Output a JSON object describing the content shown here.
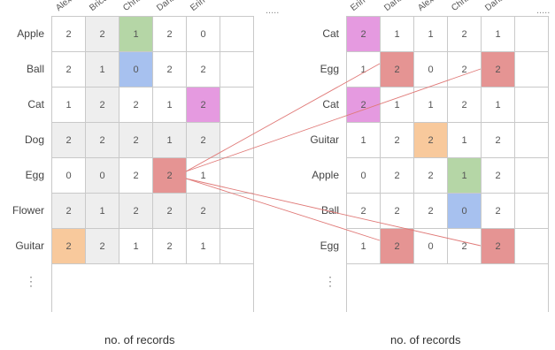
{
  "left_table": {
    "columns": [
      "Alex",
      "Brice",
      "Chris",
      "Dana",
      "Erin"
    ],
    "columns_more": ".....",
    "rows": [
      {
        "label": "Apple",
        "values": [
          "2",
          "2",
          "1",
          "2",
          "0"
        ]
      },
      {
        "label": "Ball",
        "values": [
          "2",
          "1",
          "0",
          "2",
          "2"
        ]
      },
      {
        "label": "Cat",
        "values": [
          "1",
          "2",
          "2",
          "1",
          "2"
        ]
      },
      {
        "label": "Dog",
        "values": [
          "2",
          "2",
          "2",
          "1",
          "2"
        ]
      },
      {
        "label": "Egg",
        "values": [
          "0",
          "0",
          "2",
          "2",
          "1"
        ]
      },
      {
        "label": "Flower",
        "values": [
          "2",
          "1",
          "2",
          "2",
          "2"
        ]
      },
      {
        "label": "Guitar",
        "values": [
          "2",
          "2",
          "1",
          "2",
          "1"
        ]
      }
    ],
    "rows_more": "⋮",
    "caption": "no. of records"
  },
  "right_table": {
    "columns": [
      "Erin",
      "Dana",
      "Alex",
      "Chris",
      "Dana"
    ],
    "columns_more": ".....",
    "rows": [
      {
        "label": "Cat",
        "values": [
          "2",
          "1",
          "1",
          "2",
          "1"
        ]
      },
      {
        "label": "Egg",
        "values": [
          "1",
          "2",
          "0",
          "2",
          "2"
        ]
      },
      {
        "label": "Cat",
        "values": [
          "2",
          "1",
          "1",
          "2",
          "1"
        ]
      },
      {
        "label": "Guitar",
        "values": [
          "1",
          "2",
          "2",
          "1",
          "2"
        ]
      },
      {
        "label": "Apple",
        "values": [
          "0",
          "2",
          "2",
          "1",
          "2"
        ]
      },
      {
        "label": "Ball",
        "values": [
          "2",
          "2",
          "2",
          "0",
          "2"
        ]
      },
      {
        "label": "Egg",
        "values": [
          "1",
          "2",
          "0",
          "2",
          "2"
        ]
      }
    ],
    "rows_more": "⋮",
    "caption": "no. of records"
  },
  "colors": {
    "gray": "#eeeeee",
    "green": "#b5d6a6",
    "blue": "#a7c1ef",
    "magenta": "#e59ae0",
    "red": "#e59493",
    "orange": "#f8c99c",
    "link": "#e07a78"
  }
}
